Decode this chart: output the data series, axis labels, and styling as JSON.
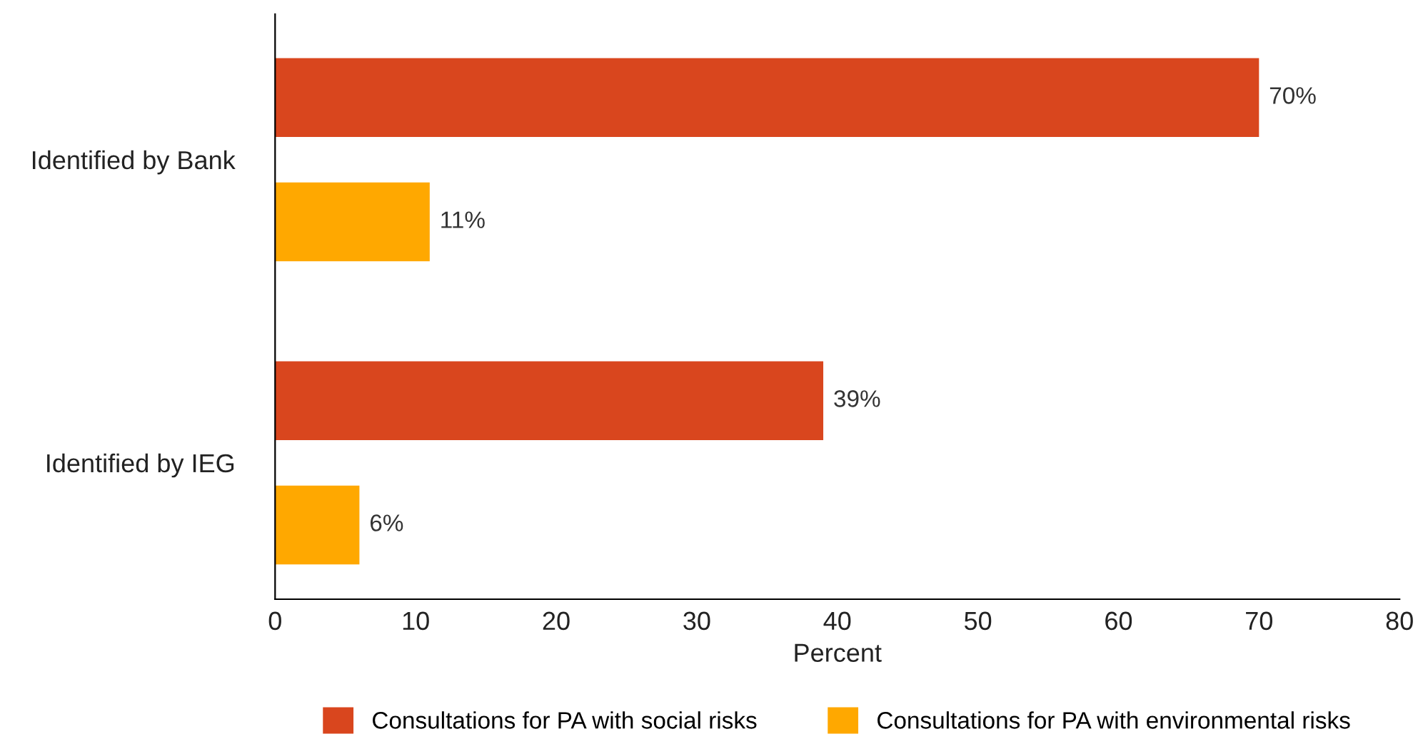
{
  "chart_data": {
    "type": "bar",
    "orientation": "horizontal",
    "categories": [
      "Identified by Bank",
      "Identified by IEG"
    ],
    "series": [
      {
        "name": "Consultations for PA with social risks",
        "color": "#d9461e",
        "values": [
          70,
          39
        ],
        "value_labels": [
          "70%",
          "39%"
        ]
      },
      {
        "name": "Consultations for PA with environmental risks",
        "color": "#ffa800",
        "values": [
          11,
          6
        ],
        "value_labels": [
          "11%",
          "6%"
        ]
      }
    ],
    "xlabel": "Percent",
    "xlim": [
      0,
      80
    ],
    "xticks": [
      0,
      10,
      20,
      30,
      40,
      50,
      60,
      70,
      80
    ],
    "grid": false,
    "legend": "bottom"
  }
}
